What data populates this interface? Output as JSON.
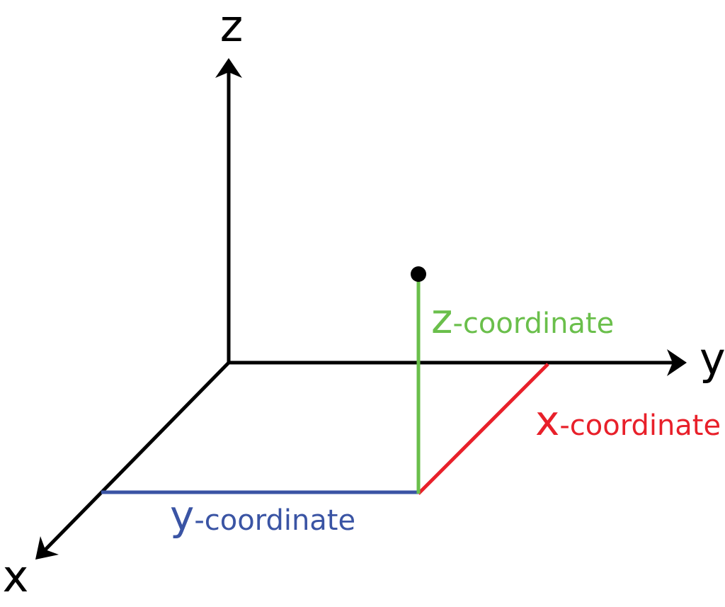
{
  "axes": {
    "z": "z",
    "y": "y",
    "x": "x"
  },
  "coordinates": {
    "z": {
      "letter": "z",
      "rest": "-coordinate"
    },
    "x": {
      "letter": "x",
      "rest": "-coordinate"
    },
    "y": {
      "letter": "y",
      "rest": "-coordinate"
    }
  }
}
